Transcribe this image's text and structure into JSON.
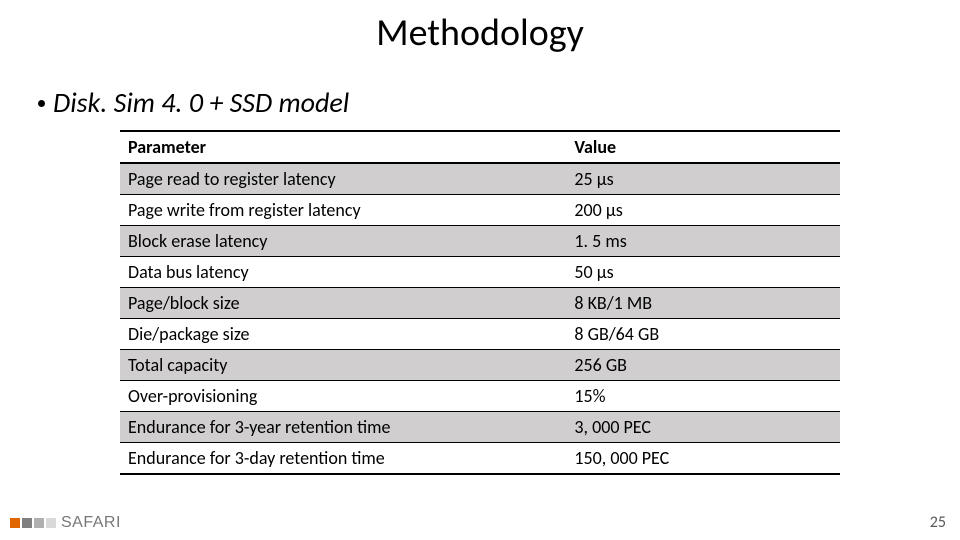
{
  "title": "Methodology",
  "bullet_text": "Disk. Sim 4. 0 + SSD model",
  "table": {
    "columns": [
      "Parameter",
      "Value"
    ],
    "col_widths_pct": [
      62,
      38
    ],
    "header_fontsize": 18,
    "header_fontweight": "bold",
    "row_fontsize": 18,
    "border_color": "#000000",
    "shade_color": "#d0cece",
    "background_color": "#ffffff",
    "rows": [
      {
        "parameter": "Page read to register latency",
        "value": "25 μs",
        "shaded": true
      },
      {
        "parameter": "Page write from register latency",
        "value": "200 μs",
        "shaded": false
      },
      {
        "parameter": "Block erase latency",
        "value": "1. 5 ms",
        "shaded": true
      },
      {
        "parameter": "Data bus latency",
        "value": "50 μs",
        "shaded": false
      },
      {
        "parameter": "Page/block size",
        "value": "8 KB/1 MB",
        "shaded": true
      },
      {
        "parameter": "Die/package size",
        "value": "8 GB/64 GB",
        "shaded": false
      },
      {
        "parameter": "Total capacity",
        "value": "256 GB",
        "shaded": true
      },
      {
        "parameter": "Over-provisioning",
        "value": "15%",
        "shaded": false
      },
      {
        "parameter": "Endurance for 3-year retention time",
        "value": "3, 000 PEC",
        "shaded": true
      },
      {
        "parameter": "Endurance for 3-day retention time",
        "value": "150, 000 PEC",
        "shaded": false
      }
    ]
  },
  "brand": {
    "text": "SAFARI",
    "icon_colors": [
      "#e06600",
      "#808080",
      "#b0b0b0",
      "#d9d9d9"
    ],
    "text_color": "#777777"
  },
  "page_number": "25",
  "title_fontsize": 38,
  "bullet_fontsize": 28
}
